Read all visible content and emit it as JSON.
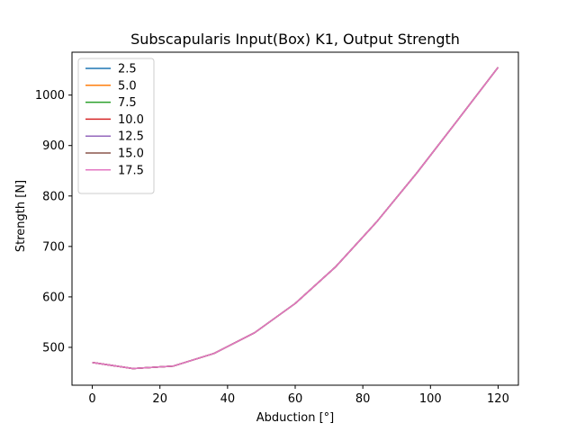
{
  "chart_data": {
    "type": "line",
    "title": "Subscapularis Input(Box) K1, Output Strength",
    "xlabel": "Abduction [°]",
    "ylabel": "Strength [N]",
    "xlim": [
      -6,
      126
    ],
    "ylim": [
      425,
      1085
    ],
    "xticks": [
      0,
      20,
      40,
      60,
      80,
      100,
      120
    ],
    "yticks": [
      500,
      600,
      700,
      800,
      900,
      1000
    ],
    "grid": false,
    "legend_position": "top-left",
    "x": [
      0,
      12,
      24,
      36,
      48,
      60,
      72,
      84,
      96,
      108,
      120
    ],
    "series": [
      {
        "name": "2.5",
        "color": "#1f77b4",
        "values": [
          470,
          458,
          463,
          488,
          529,
          587,
          660,
          748,
          846,
          950,
          1055
        ]
      },
      {
        "name": "5.0",
        "color": "#ff7f0e",
        "values": [
          470,
          458,
          463,
          488,
          529,
          587,
          660,
          748,
          846,
          950,
          1055
        ]
      },
      {
        "name": "7.5",
        "color": "#2ca02c",
        "values": [
          470,
          458,
          463,
          488,
          529,
          587,
          660,
          748,
          846,
          950,
          1055
        ]
      },
      {
        "name": "10.0",
        "color": "#d62728",
        "values": [
          470,
          458,
          463,
          488,
          529,
          587,
          660,
          748,
          846,
          950,
          1055
        ]
      },
      {
        "name": "12.5",
        "color": "#9467bd",
        "values": [
          470,
          458,
          463,
          488,
          529,
          587,
          660,
          748,
          846,
          950,
          1055
        ]
      },
      {
        "name": "15.0",
        "color": "#8c564b",
        "values": [
          470,
          458,
          463,
          488,
          529,
          587,
          660,
          748,
          846,
          950,
          1055
        ]
      },
      {
        "name": "17.5",
        "color": "#e377c2",
        "values": [
          470,
          458,
          463,
          488,
          529,
          587,
          660,
          748,
          846,
          950,
          1055
        ]
      }
    ]
  }
}
